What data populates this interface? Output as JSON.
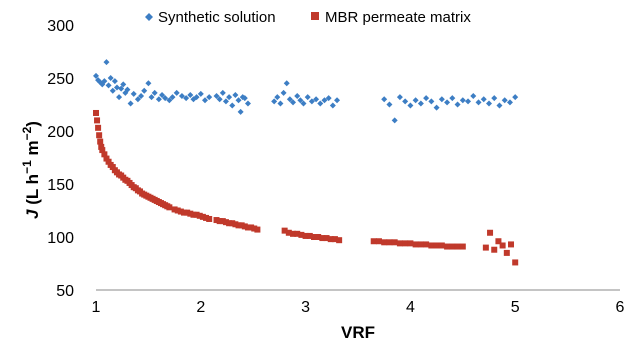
{
  "chart_data": {
    "type": "scatter",
    "xlabel": "VRF",
    "ylabel": "J (L h−1 m−2)",
    "xlim": [
      1,
      6
    ],
    "ylim": [
      50,
      300
    ],
    "x_ticks": [
      "1",
      "2",
      "3",
      "4",
      "5",
      "6"
    ],
    "y_ticks": [
      "50",
      "100",
      "150",
      "200",
      "250",
      "300"
    ],
    "grid": false,
    "legend_position": "top",
    "series": [
      {
        "name": "Synthetic solution",
        "color": "#3d7ec4",
        "marker": "diamond",
        "points": [
          [
            1.0,
            252
          ],
          [
            1.02,
            248
          ],
          [
            1.04,
            246
          ],
          [
            1.06,
            244
          ],
          [
            1.08,
            247
          ],
          [
            1.1,
            265
          ],
          [
            1.12,
            243
          ],
          [
            1.14,
            250
          ],
          [
            1.16,
            238
          ],
          [
            1.18,
            247
          ],
          [
            1.2,
            241
          ],
          [
            1.22,
            232
          ],
          [
            1.24,
            240
          ],
          [
            1.26,
            244
          ],
          [
            1.28,
            236
          ],
          [
            1.3,
            239
          ],
          [
            1.33,
            226
          ],
          [
            1.36,
            235
          ],
          [
            1.4,
            230
          ],
          [
            1.43,
            233
          ],
          [
            1.46,
            238
          ],
          [
            1.5,
            245
          ],
          [
            1.53,
            232
          ],
          [
            1.56,
            236
          ],
          [
            1.6,
            230
          ],
          [
            1.63,
            234
          ],
          [
            1.66,
            231
          ],
          [
            1.7,
            229
          ],
          [
            1.73,
            232
          ],
          [
            1.77,
            236
          ],
          [
            1.82,
            233
          ],
          [
            1.86,
            231
          ],
          [
            1.9,
            234
          ],
          [
            1.93,
            230
          ],
          [
            1.96,
            232
          ],
          [
            2.0,
            235
          ],
          [
            2.04,
            229
          ],
          [
            2.08,
            232
          ],
          [
            2.15,
            233
          ],
          [
            2.18,
            230
          ],
          [
            2.21,
            236
          ],
          [
            2.24,
            228
          ],
          [
            2.27,
            232
          ],
          [
            2.3,
            224
          ],
          [
            2.33,
            234
          ],
          [
            2.36,
            229
          ],
          [
            2.38,
            218
          ],
          [
            2.4,
            232
          ],
          [
            2.42,
            231
          ],
          [
            2.45,
            226
          ],
          [
            2.7,
            228
          ],
          [
            2.73,
            232
          ],
          [
            2.76,
            226
          ],
          [
            2.79,
            236
          ],
          [
            2.82,
            245
          ],
          [
            2.85,
            230
          ],
          [
            2.88,
            227
          ],
          [
            2.92,
            233
          ],
          [
            2.95,
            229
          ],
          [
            2.98,
            226
          ],
          [
            3.02,
            232
          ],
          [
            3.06,
            228
          ],
          [
            3.1,
            230
          ],
          [
            3.14,
            226
          ],
          [
            3.18,
            229
          ],
          [
            3.22,
            231
          ],
          [
            3.26,
            224
          ],
          [
            3.3,
            229
          ],
          [
            3.75,
            230
          ],
          [
            3.8,
            225
          ],
          [
            3.85,
            210
          ],
          [
            3.9,
            232
          ],
          [
            3.95,
            228
          ],
          [
            4.0,
            224
          ],
          [
            4.05,
            229
          ],
          [
            4.1,
            226
          ],
          [
            4.15,
            231
          ],
          [
            4.2,
            228
          ],
          [
            4.25,
            222
          ],
          [
            4.3,
            230
          ],
          [
            4.35,
            227
          ],
          [
            4.4,
            231
          ],
          [
            4.45,
            225
          ],
          [
            4.5,
            229
          ],
          [
            4.55,
            228
          ],
          [
            4.6,
            233
          ],
          [
            4.65,
            227
          ],
          [
            4.7,
            230
          ],
          [
            4.75,
            226
          ],
          [
            4.8,
            231
          ],
          [
            4.85,
            224
          ],
          [
            4.9,
            229
          ],
          [
            4.95,
            227
          ],
          [
            5.0,
            232
          ]
        ]
      },
      {
        "name": "MBR permeate matrix",
        "color": "#c0392b",
        "marker": "square",
        "points": [
          [
            1.0,
            217
          ],
          [
            1.01,
            210
          ],
          [
            1.02,
            203
          ],
          [
            1.03,
            196
          ],
          [
            1.04,
            190
          ],
          [
            1.05,
            185
          ],
          [
            1.06,
            182
          ],
          [
            1.08,
            178
          ],
          [
            1.1,
            174
          ],
          [
            1.12,
            171
          ],
          [
            1.14,
            168
          ],
          [
            1.16,
            166
          ],
          [
            1.18,
            163
          ],
          [
            1.2,
            161
          ],
          [
            1.22,
            159
          ],
          [
            1.24,
            158
          ],
          [
            1.26,
            156
          ],
          [
            1.28,
            154
          ],
          [
            1.3,
            153
          ],
          [
            1.32,
            151
          ],
          [
            1.34,
            149
          ],
          [
            1.36,
            147
          ],
          [
            1.38,
            146
          ],
          [
            1.4,
            144
          ],
          [
            1.42,
            143
          ],
          [
            1.44,
            141
          ],
          [
            1.46,
            140
          ],
          [
            1.48,
            139
          ],
          [
            1.5,
            138
          ],
          [
            1.52,
            137
          ],
          [
            1.54,
            136
          ],
          [
            1.56,
            135
          ],
          [
            1.58,
            134
          ],
          [
            1.6,
            133
          ],
          [
            1.62,
            132
          ],
          [
            1.64,
            131
          ],
          [
            1.66,
            130
          ],
          [
            1.68,
            129
          ],
          [
            1.7,
            128
          ],
          [
            1.75,
            126
          ],
          [
            1.78,
            125
          ],
          [
            1.81,
            124
          ],
          [
            1.84,
            123
          ],
          [
            1.87,
            123
          ],
          [
            1.9,
            122
          ],
          [
            1.93,
            121
          ],
          [
            1.96,
            121
          ],
          [
            1.99,
            120
          ],
          [
            2.02,
            119
          ],
          [
            2.05,
            118
          ],
          [
            2.08,
            117
          ],
          [
            2.15,
            116
          ],
          [
            2.18,
            115
          ],
          [
            2.21,
            115
          ],
          [
            2.24,
            114
          ],
          [
            2.27,
            113
          ],
          [
            2.3,
            113
          ],
          [
            2.33,
            112
          ],
          [
            2.36,
            111
          ],
          [
            2.39,
            111
          ],
          [
            2.42,
            110
          ],
          [
            2.45,
            109
          ],
          [
            2.48,
            109
          ],
          [
            2.51,
            108
          ],
          [
            2.54,
            107
          ],
          [
            2.8,
            106
          ],
          [
            2.84,
            104
          ],
          [
            2.88,
            103
          ],
          [
            2.92,
            103
          ],
          [
            2.96,
            102
          ],
          [
            3.0,
            101
          ],
          [
            3.04,
            101
          ],
          [
            3.08,
            100
          ],
          [
            3.12,
            100
          ],
          [
            3.16,
            99
          ],
          [
            3.2,
            99
          ],
          [
            3.24,
            98
          ],
          [
            3.28,
            98
          ],
          [
            3.32,
            97
          ],
          [
            3.65,
            96
          ],
          [
            3.7,
            96
          ],
          [
            3.75,
            95
          ],
          [
            3.8,
            95
          ],
          [
            3.85,
            95
          ],
          [
            3.9,
            94
          ],
          [
            3.95,
            94
          ],
          [
            4.0,
            94
          ],
          [
            4.05,
            93
          ],
          [
            4.1,
            93
          ],
          [
            4.15,
            93
          ],
          [
            4.2,
            92
          ],
          [
            4.25,
            92
          ],
          [
            4.3,
            92
          ],
          [
            4.35,
            91
          ],
          [
            4.4,
            91
          ],
          [
            4.45,
            91
          ],
          [
            4.5,
            91
          ],
          [
            4.72,
            90
          ],
          [
            4.76,
            104
          ],
          [
            4.8,
            88
          ],
          [
            4.84,
            96
          ],
          [
            4.88,
            92
          ],
          [
            4.92,
            85
          ],
          [
            4.96,
            93
          ],
          [
            5.0,
            76
          ]
        ]
      }
    ]
  }
}
